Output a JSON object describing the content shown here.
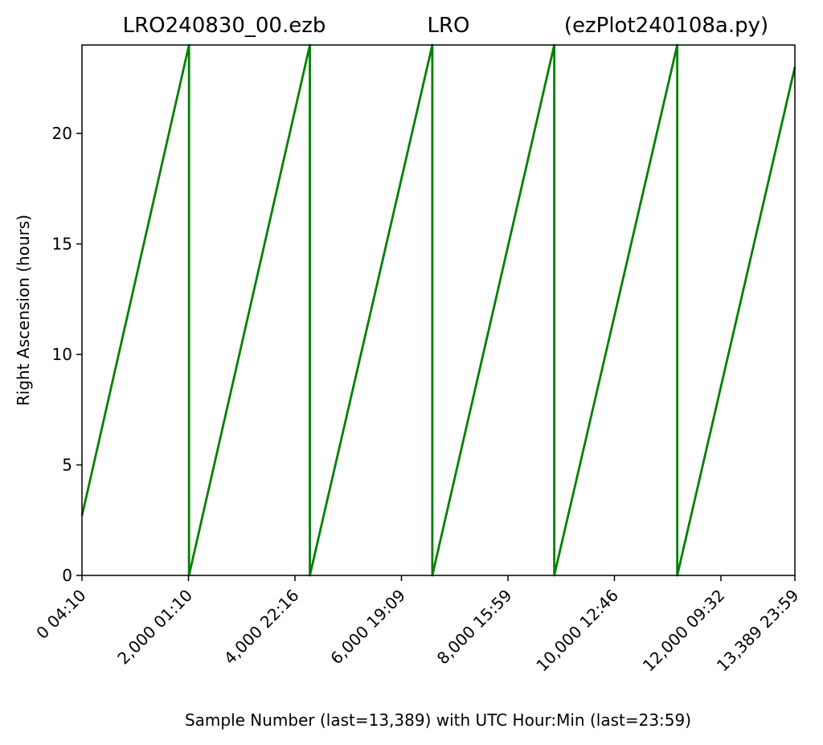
{
  "chart_data": {
    "type": "line",
    "title_parts": [
      "LRO240830_00.ezb",
      "LRO",
      "(ezPlot240108a.py)"
    ],
    "xlabel": "Sample Number (last=13,389) with UTC Hour:Min (last=23:59)",
    "ylabel": "Right Ascension (hours)",
    "xlim": [
      0,
      13389
    ],
    "ylim": [
      0,
      24
    ],
    "grid": false,
    "line_color": "#008000",
    "x_ticks": [
      {
        "value": 0,
        "label": "0  04:10"
      },
      {
        "value": 2000,
        "label": "2,000  01:10"
      },
      {
        "value": 4000,
        "label": "4,000  22:16"
      },
      {
        "value": 6000,
        "label": "6,000  19:09"
      },
      {
        "value": 8000,
        "label": "8,000  15:59"
      },
      {
        "value": 10000,
        "label": "10,000  12:46"
      },
      {
        "value": 12000,
        "label": "12,000  09:32"
      },
      {
        "value": 13389,
        "label": "13,389  23:59"
      }
    ],
    "y_ticks": [
      {
        "value": 0,
        "label": "0"
      },
      {
        "value": 5,
        "label": "5"
      },
      {
        "value": 10,
        "label": "10"
      },
      {
        "value": 15,
        "label": "15"
      },
      {
        "value": 20,
        "label": "20"
      }
    ],
    "series": [
      {
        "x": [
          0,
          2010,
          2010,
          4280,
          4280,
          6580,
          6580,
          8870,
          8870,
          11180,
          11180,
          13389
        ],
        "y": [
          2.7,
          24.0,
          0.0,
          24.0,
          0.0,
          24.0,
          0.0,
          24.0,
          0.0,
          24.0,
          0.0,
          23.0
        ]
      }
    ]
  }
}
